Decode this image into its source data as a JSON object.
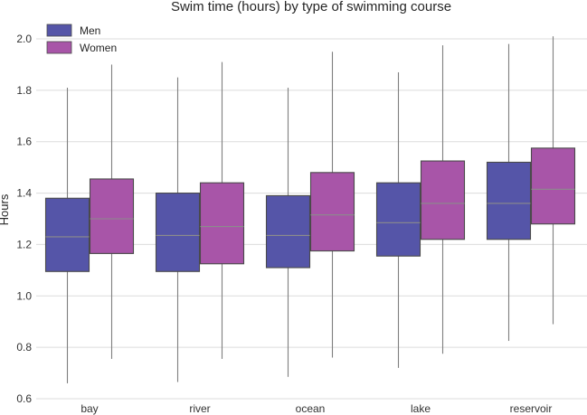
{
  "chart_data": {
    "type": "boxplot",
    "title": "Swim time (hours) by type of swimming course",
    "xlabel": "",
    "ylabel": "Hours",
    "ylim": [
      0.6,
      2.05
    ],
    "yticks": [
      "0.6",
      "0.8",
      "1.0",
      "1.2",
      "1.4",
      "1.6",
      "1.8",
      "2.0"
    ],
    "grid": true,
    "legend_position": "top-left",
    "categories": [
      "bay",
      "river",
      "ocean",
      "lake",
      "reservoir"
    ],
    "series": [
      {
        "name": "Men",
        "color": "#5555a8",
        "boxes": [
          {
            "whislo": 0.66,
            "q1": 1.095,
            "med": 1.23,
            "q3": 1.38,
            "whishi": 1.81
          },
          {
            "whislo": 0.665,
            "q1": 1.095,
            "med": 1.235,
            "q3": 1.4,
            "whishi": 1.85
          },
          {
            "whislo": 0.685,
            "q1": 1.11,
            "med": 1.235,
            "q3": 1.39,
            "whishi": 1.81
          },
          {
            "whislo": 0.72,
            "q1": 1.155,
            "med": 1.285,
            "q3": 1.44,
            "whishi": 1.87
          },
          {
            "whislo": 0.825,
            "q1": 1.22,
            "med": 1.36,
            "q3": 1.52,
            "whishi": 1.98
          }
        ]
      },
      {
        "name": "Women",
        "color": "#a855a8",
        "boxes": [
          {
            "whislo": 0.755,
            "q1": 1.165,
            "med": 1.3,
            "q3": 1.455,
            "whishi": 1.9
          },
          {
            "whislo": 0.755,
            "q1": 1.125,
            "med": 1.27,
            "q3": 1.44,
            "whishi": 1.91
          },
          {
            "whislo": 0.76,
            "q1": 1.175,
            "med": 1.315,
            "q3": 1.48,
            "whishi": 1.95
          },
          {
            "whislo": 0.775,
            "q1": 1.22,
            "med": 1.36,
            "q3": 1.525,
            "whishi": 1.975
          },
          {
            "whislo": 0.89,
            "q1": 1.28,
            "med": 1.415,
            "q3": 1.575,
            "whishi": 2.01
          }
        ]
      }
    ]
  }
}
